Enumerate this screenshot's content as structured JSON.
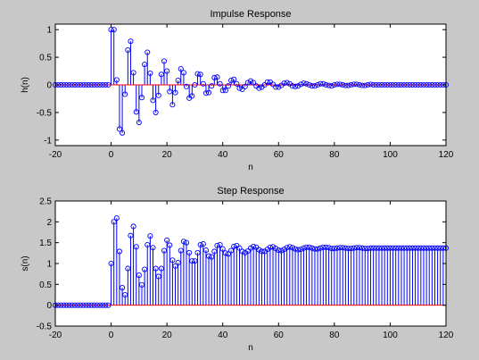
{
  "figure": {
    "background": "#c8c8c8",
    "axes_background": "#ffffff",
    "stem_color": "#0000ff",
    "baseline_color": "#ff0000"
  },
  "chart_data": [
    {
      "type": "stem",
      "title": "Impulse Response",
      "xlabel": "n",
      "ylabel": "h(n)",
      "xlim": [
        -20,
        120
      ],
      "ylim": [
        -1.1,
        1.1
      ],
      "xticks": [
        -20,
        0,
        20,
        40,
        60,
        80,
        100,
        120
      ],
      "yticks": [
        -1,
        -0.5,
        0,
        0.5,
        1
      ],
      "ytick_labels": [
        "-1",
        "-0.5",
        "0",
        "0.5",
        "1"
      ],
      "grid": false,
      "x_start": -20,
      "values": [
        0,
        0,
        0,
        0,
        0,
        0,
        0,
        0,
        0,
        0,
        0,
        0,
        0,
        0,
        0,
        0,
        0,
        0,
        0,
        0,
        1,
        1,
        0.09,
        -0.8,
        -0.87,
        -0.17,
        0.63,
        0.79,
        0.22,
        -0.49,
        -0.68,
        -0.23,
        0.37,
        0.59,
        0.21,
        -0.28,
        -0.5,
        -0.19,
        0.19,
        0.43,
        0.25,
        -0.12,
        -0.36,
        -0.14,
        0.08,
        0.29,
        0.22,
        -0.03,
        -0.24,
        -0.2,
        0,
        0.2,
        0.19,
        0.02,
        -0.15,
        -0.14,
        -0.02,
        0.13,
        0.14,
        0.02,
        -0.1,
        -0.1,
        -0.02,
        0.08,
        0.1,
        0.02,
        -0.06,
        -0.08,
        -0.03,
        0.04,
        0.07,
        0.04,
        -0.02,
        -0.06,
        -0.04,
        0,
        0.05,
        0.05,
        0.01,
        -0.04,
        -0.04,
        -0.01,
        0.03,
        0.04,
        0.02,
        -0.02,
        -0.03,
        -0.02,
        0.01,
        0.03,
        0.02,
        0,
        -0.02,
        -0.02,
        0,
        0.02,
        0.02,
        0,
        -0.01,
        -0.02,
        0,
        0.01,
        0.01,
        0,
        -0.01,
        -0.01,
        0,
        0.01,
        0.01,
        0,
        -0.01,
        -0.01,
        0,
        0.01,
        0,
        0,
        0,
        0,
        0,
        0,
        0,
        0,
        0,
        0,
        0,
        0,
        0,
        0,
        0,
        0,
        0,
        0,
        0,
        0,
        0,
        0,
        0,
        0,
        0,
        0,
        0
      ]
    },
    {
      "type": "stem",
      "title": "Step Response",
      "xlabel": "n",
      "ylabel": "s(n)",
      "xlim": [
        -20,
        120
      ],
      "ylim": [
        -0.5,
        2.5
      ],
      "xticks": [
        -20,
        0,
        20,
        40,
        60,
        80,
        100,
        120
      ],
      "yticks": [
        -0.5,
        0,
        0.5,
        1,
        1.5,
        2,
        2.5
      ],
      "ytick_labels": [
        "-0.5",
        "0",
        "0.5",
        "1",
        "1.5",
        "2",
        "2.5"
      ],
      "grid": false,
      "x_start": -20,
      "values": [
        0,
        0,
        0,
        0,
        0,
        0,
        0,
        0,
        0,
        0,
        0,
        0,
        0,
        0,
        0,
        0,
        0,
        0,
        0,
        0,
        1,
        2,
        2.09,
        1.29,
        0.42,
        0.25,
        0.88,
        1.67,
        1.89,
        1.4,
        0.72,
        0.49,
        0.86,
        1.45,
        1.66,
        1.38,
        0.88,
        0.69,
        0.88,
        1.31,
        1.56,
        1.44,
        1.08,
        0.94,
        1.02,
        1.31,
        1.53,
        1.5,
        1.26,
        1.06,
        1.06,
        1.26,
        1.45,
        1.47,
        1.32,
        1.18,
        1.16,
        1.29,
        1.43,
        1.45,
        1.35,
        1.25,
        1.23,
        1.31,
        1.41,
        1.43,
        1.37,
        1.29,
        1.26,
        1.3,
        1.37,
        1.41,
        1.39,
        1.33,
        1.29,
        1.29,
        1.34,
        1.39,
        1.4,
        1.36,
        1.32,
        1.31,
        1.34,
        1.38,
        1.4,
        1.38,
        1.35,
        1.33,
        1.34,
        1.37,
        1.39,
        1.39,
        1.37,
        1.35,
        1.35,
        1.37,
        1.39,
        1.39,
        1.38,
        1.36,
        1.36,
        1.37,
        1.38,
        1.38,
        1.37,
        1.36,
        1.36,
        1.37,
        1.38,
        1.38,
        1.37,
        1.36,
        1.36,
        1.37,
        1.37,
        1.37,
        1.37,
        1.37,
        1.37,
        1.37,
        1.37,
        1.37,
        1.37,
        1.37,
        1.37,
        1.37,
        1.37,
        1.37,
        1.37,
        1.37,
        1.37,
        1.37,
        1.37,
        1.37,
        1.37,
        1.37,
        1.37,
        1.37,
        1.37,
        1.37,
        1.37
      ]
    }
  ]
}
